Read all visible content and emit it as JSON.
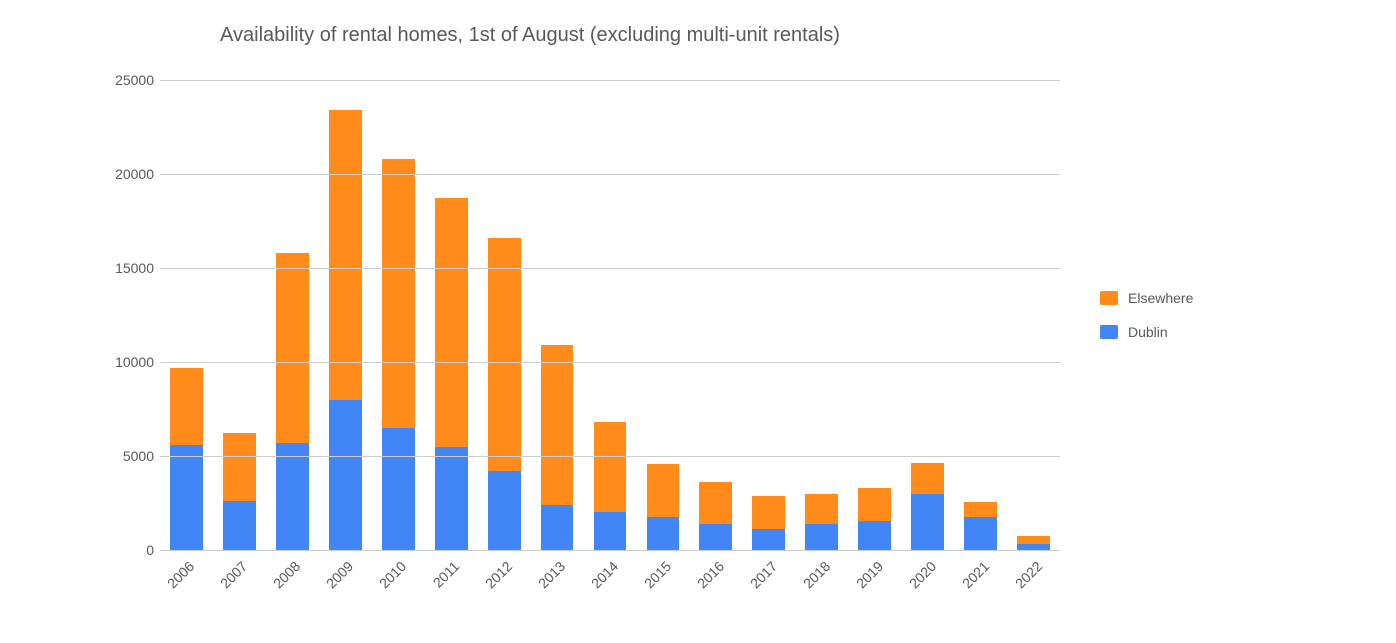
{
  "chart": {
    "type": "stacked-bar",
    "title": "Availability of rental homes, 1st of August (excluding multi-unit rentals)",
    "title_fontsize": 20,
    "title_color": "#595959",
    "background_color": "#ffffff",
    "grid_color": "#cccccc",
    "axis_label_color": "#595959",
    "axis_label_fontsize": 14,
    "x_tick_rotation_deg": -45,
    "bar_fill_ratio": 0.62,
    "ylim": [
      0,
      25000
    ],
    "ytick_step": 5000,
    "yticks": [
      0,
      5000,
      10000,
      15000,
      20000,
      25000
    ],
    "categories": [
      "2006",
      "2007",
      "2008",
      "2009",
      "2010",
      "2011",
      "2012",
      "2013",
      "2014",
      "2015",
      "2016",
      "2017",
      "2018",
      "2019",
      "2020",
      "2021",
      "2022"
    ],
    "series": [
      {
        "name": "Dublin",
        "color": "#4285f4"
      },
      {
        "name": "Elsewhere",
        "color": "#ff8c1a"
      }
    ],
    "values": {
      "Dublin": [
        5600,
        2600,
        5700,
        8000,
        6500,
        5500,
        4200,
        2400,
        2000,
        1750,
        1400,
        1100,
        1400,
        1550,
        3000,
        1750,
        300
      ],
      "Elsewhere": [
        4100,
        3600,
        10100,
        15400,
        14300,
        13200,
        12400,
        8500,
        4800,
        2800,
        2200,
        1800,
        1600,
        1750,
        1650,
        800,
        450
      ]
    },
    "legend": {
      "position": "right",
      "items": [
        "Elsewhere",
        "Dublin"
      ]
    }
  }
}
